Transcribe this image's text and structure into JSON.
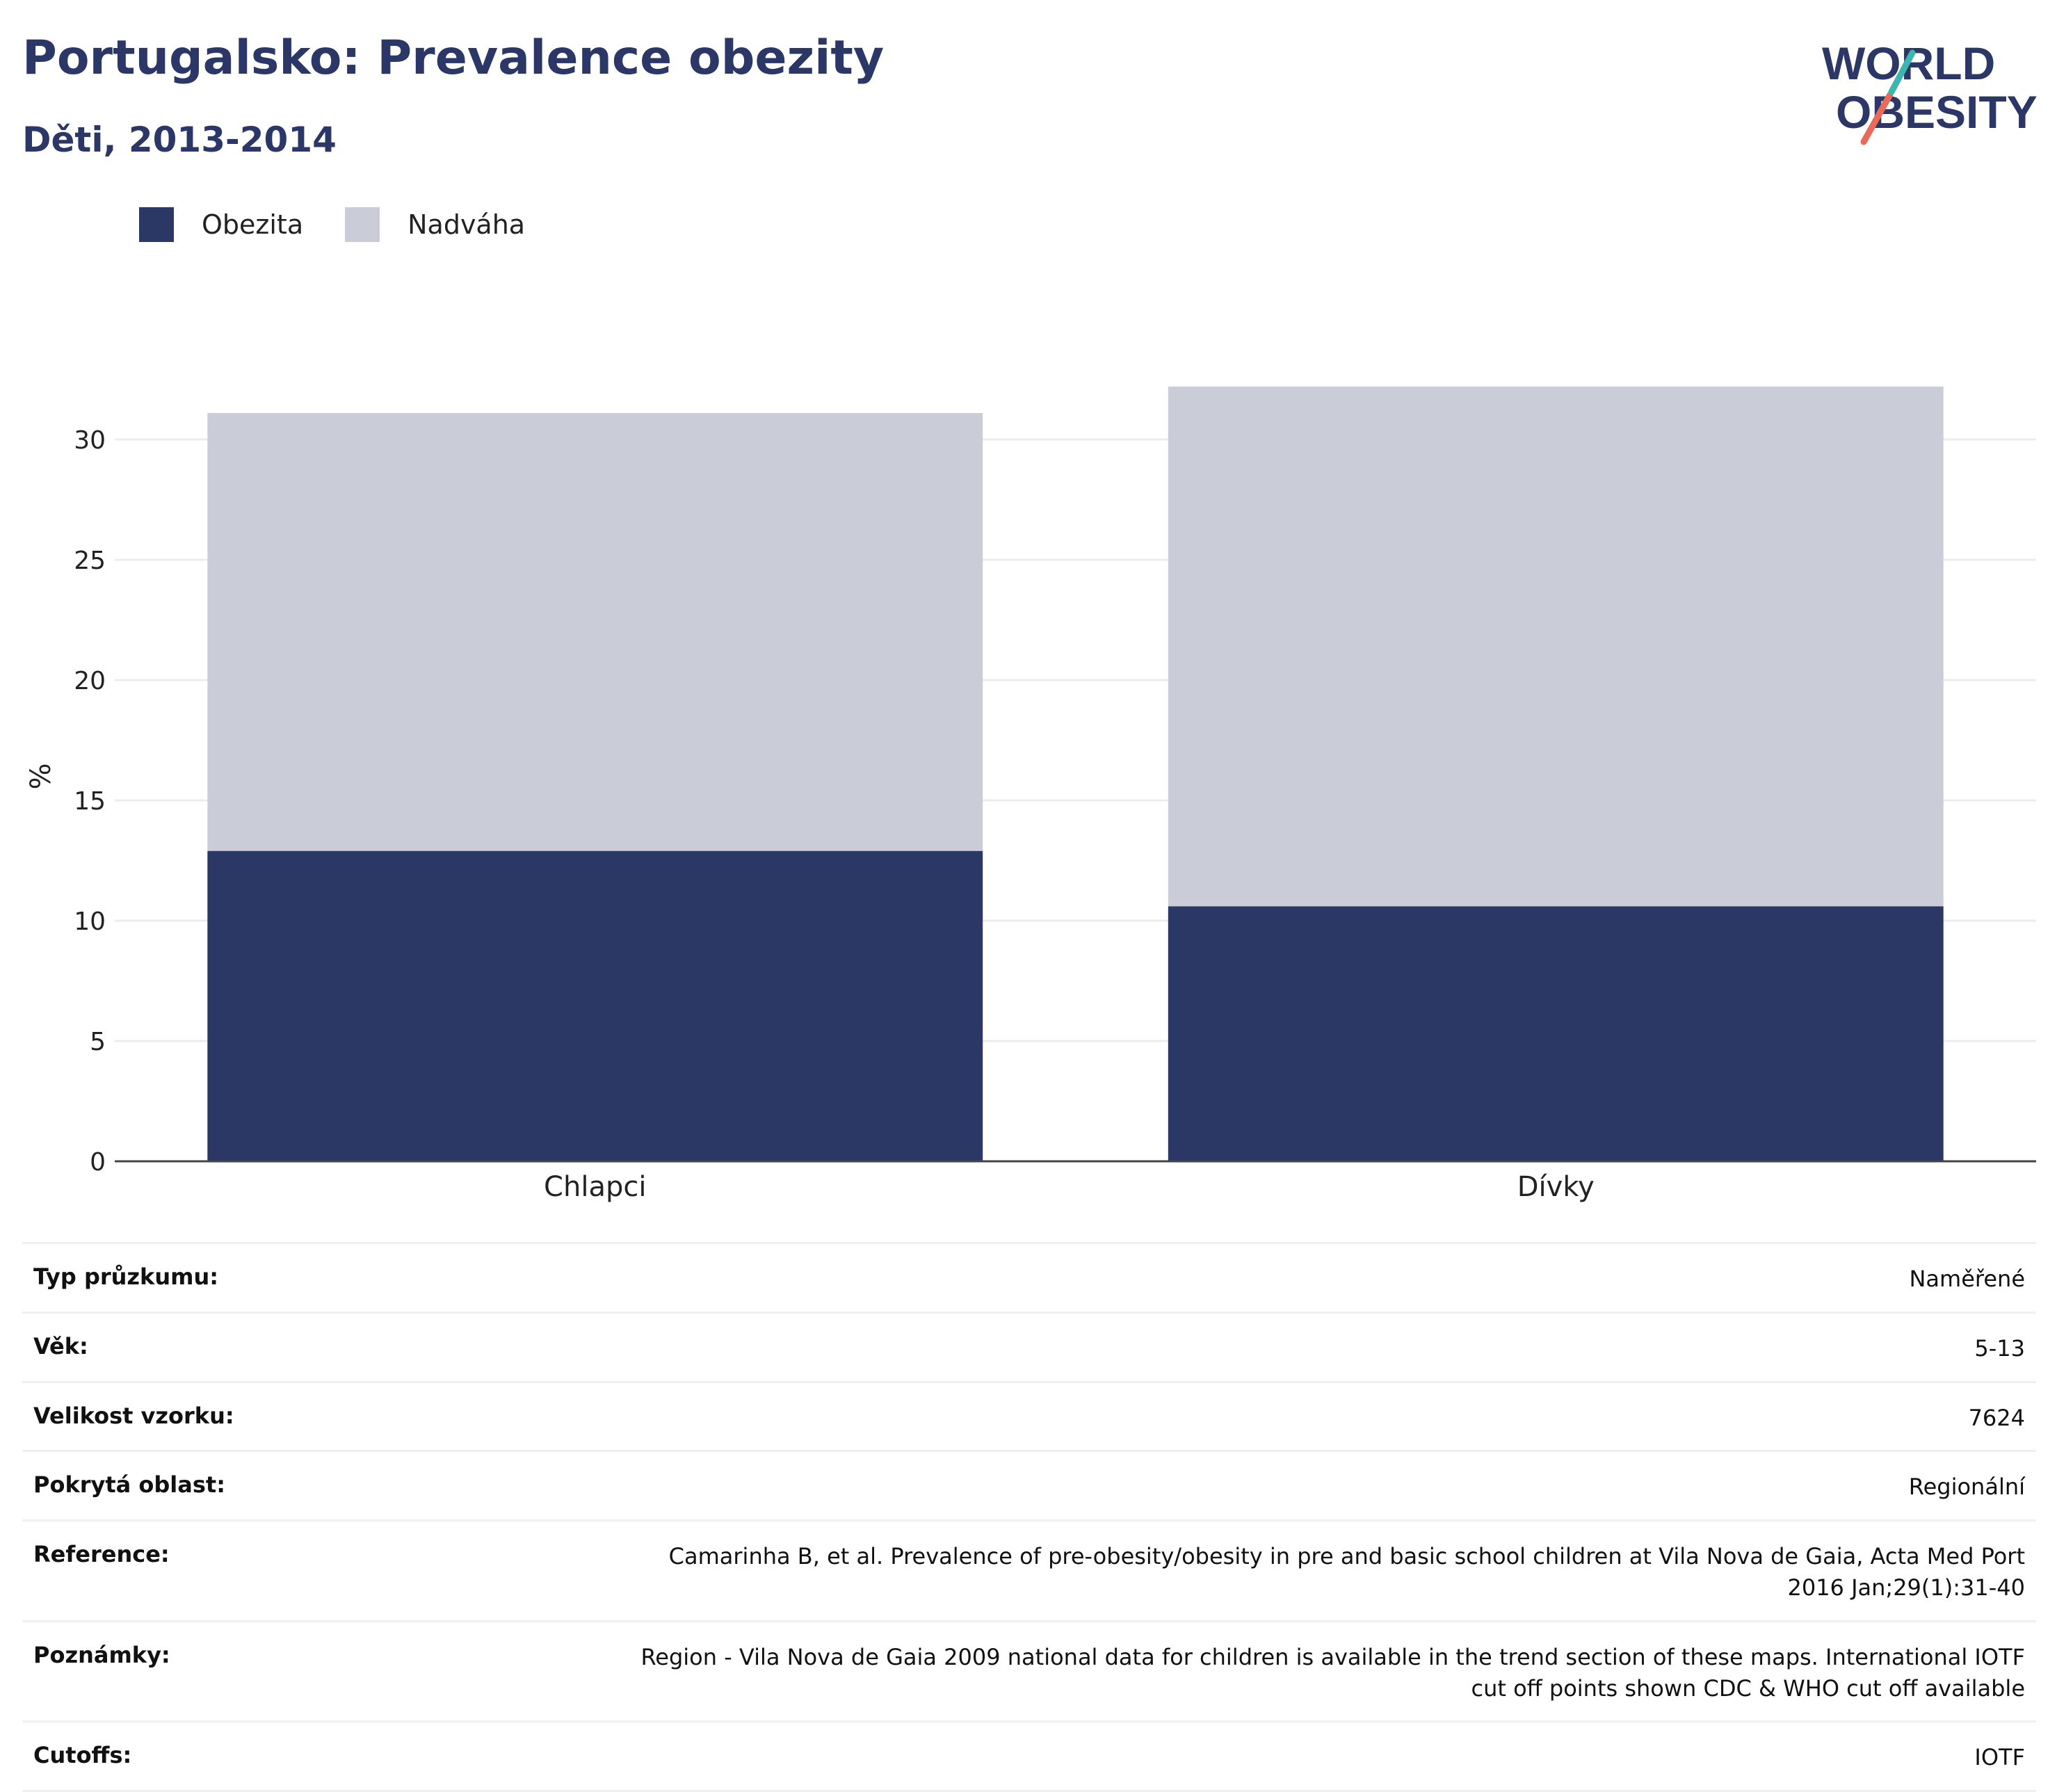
{
  "header": {
    "title": "Portugalsko: Prevalence obezity",
    "subtitle": "Děti, 2013-2014"
  },
  "logo": {
    "line1": "WORLD",
    "line2": "OBESITY"
  },
  "colors": {
    "obezita": "#2b3764",
    "nadvaha": "#cacdd8",
    "title": "#2b3766",
    "logo_teal": "#3db5b0",
    "logo_coral": "#e96a5a"
  },
  "chart_data": {
    "type": "bar",
    "stacked": true,
    "categories": [
      "Chlapci",
      "Dívky"
    ],
    "series": [
      {
        "name": "Obezita",
        "values": [
          12.9,
          10.6
        ]
      },
      {
        "name": "Nadváha",
        "values": [
          18.2,
          21.6
        ]
      }
    ],
    "ylabel": "%",
    "xlabel": "",
    "ylim": [
      0,
      32.5
    ],
    "yticks": [
      0,
      5,
      10,
      15,
      20,
      25,
      30
    ],
    "grid": true,
    "legend_position": "top-left"
  },
  "info": [
    {
      "label": "Typ průzkumu:",
      "value": "Naměřené"
    },
    {
      "label": "Věk:",
      "value": "5-13"
    },
    {
      "label": "Velikost vzorku:",
      "value": "7624"
    },
    {
      "label": "Pokrytá oblast:",
      "value": "Regionální"
    },
    {
      "label": "Reference:",
      "value": "Camarinha B, et al. Prevalence of pre-obesity/obesity in pre and basic school children at Vila Nova de Gaia, Acta Med Port 2016 Jan;29(1):31-40"
    },
    {
      "label": "Poznámky:",
      "value": "Region - Vila Nova de Gaia 2009 national data for children is available in the trend section of these maps. International IOTF cut off points shown CDC & WHO cut off available"
    },
    {
      "label": "Cutoffs:",
      "value": "IOTF"
    }
  ]
}
